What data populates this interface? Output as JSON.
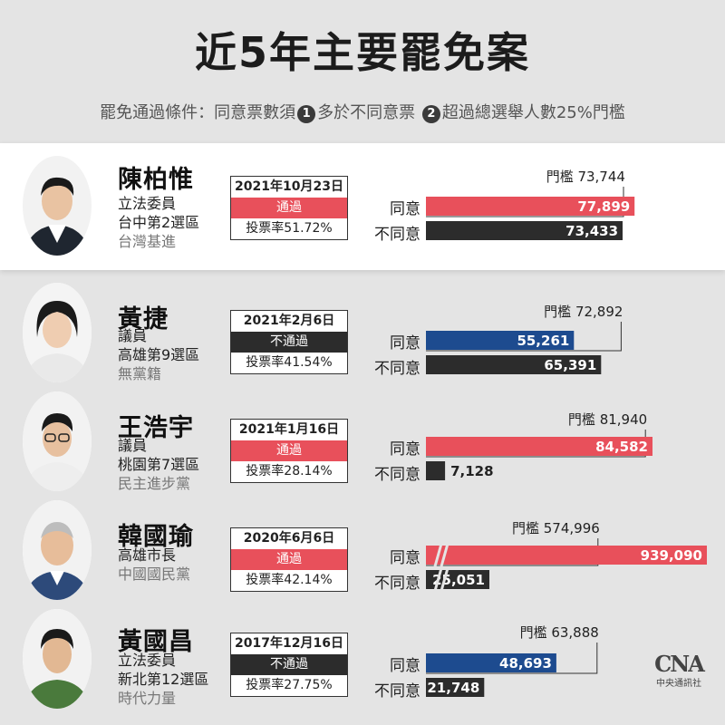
{
  "title": "近5年主要罷免案",
  "subtitle": {
    "lead": "罷免通過條件：同意票數須",
    "cond1_num": "1",
    "cond1": "多於不同意票",
    "cond2_num": "2",
    "cond2": "超過總選舉人數25%門檻"
  },
  "labels": {
    "agree": "同意",
    "disagree": "不同意",
    "threshold_prefix": "門檻"
  },
  "colors": {
    "pass": "#e8505b",
    "fail_agree": "#1d4b8f",
    "disagree": "#2c2c2c",
    "highlight_bg": "#ffffff",
    "page_bg": "#e4e4e4"
  },
  "cases": [
    {
      "name": "陳柏惟",
      "role": "立法委員",
      "district": "台中第2選區",
      "party": "台灣基進",
      "date": "2021年10月23日",
      "result": "通過",
      "passed": true,
      "turnout": "投票率51.72%"
    },
    {
      "name": "黃捷",
      "role": "議員",
      "district": "高雄第9選區",
      "party": "無黨籍",
      "date": "2021年2月6日",
      "result": "不通過",
      "passed": false,
      "turnout": "投票率41.54%"
    },
    {
      "name": "王浩宇",
      "role": "議員",
      "district": "桃園第7選區",
      "party": "民主進步黨",
      "date": "2021年1月16日",
      "result": "通過",
      "passed": true,
      "turnout": "投票率28.14%"
    },
    {
      "name": "韓國瑜",
      "role": "高雄市長",
      "district": "",
      "party": "中國國民黨",
      "date": "2020年6月6日",
      "result": "通過",
      "passed": true,
      "turnout": "投票率42.14%"
    },
    {
      "name": "黃國昌",
      "role": "立法委員",
      "district": "新北第12選區",
      "party": "時代力量",
      "date": "2017年12月16日",
      "result": "不通過",
      "passed": false,
      "turnout": "投票率27.75%"
    }
  ],
  "chart_data": {
    "type": "bar",
    "categories": [
      "陳柏惟",
      "黃捷",
      "王浩宇",
      "韓國瑜",
      "黃國昌"
    ],
    "series": [
      {
        "name": "同意",
        "values": [
          77899,
          55261,
          84582,
          939090,
          48693
        ],
        "labels": [
          "77,899",
          "55,261",
          "84,582",
          "939,090",
          "48,693"
        ]
      },
      {
        "name": "不同意",
        "values": [
          73433,
          65391,
          7128,
          25051,
          21748
        ],
        "labels": [
          "73,433",
          "65,391",
          "7,128",
          "25,051",
          "21,748"
        ]
      }
    ],
    "thresholds": [
      73744,
      72892,
      81940,
      574996,
      63888
    ],
    "threshold_labels": [
      "73,744",
      "72,892",
      "81,940",
      "574,996",
      "63,888"
    ],
    "broken_axis": [
      false,
      false,
      false,
      true,
      false
    ]
  },
  "logo": {
    "mark": "CNA",
    "text": "中央通訊社"
  }
}
